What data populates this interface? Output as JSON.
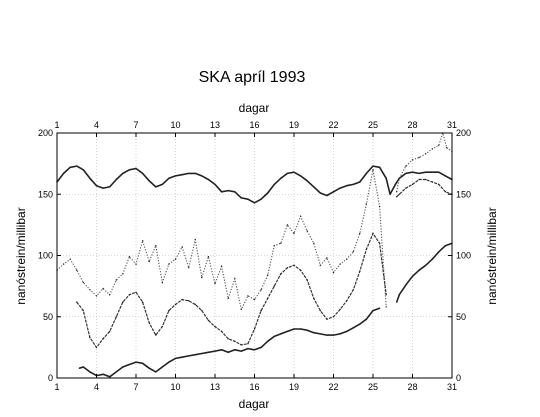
{
  "chart_data": {
    "type": "line",
    "title": "SKA  apríl 1993",
    "xlabel_top": "dagar",
    "xlabel_bottom": "dagar",
    "ylabel_left": "nanóstrein/millibar",
    "ylabel_right": "nanóstrein/millibar",
    "xlim": [
      1,
      31
    ],
    "ylim": [
      0,
      200
    ],
    "x_ticks": [
      1,
      4,
      7,
      10,
      13,
      16,
      19,
      22,
      25,
      28,
      31
    ],
    "y_ticks": [
      0,
      50,
      100,
      150,
      200
    ],
    "grid": true,
    "series": [
      {
        "style": "solid",
        "values": [
          [
            1.0,
            160
          ],
          [
            1.5,
            167
          ],
          [
            2.0,
            172
          ],
          [
            2.5,
            173
          ],
          [
            3.0,
            170
          ],
          [
            3.5,
            163
          ],
          [
            4.0,
            157
          ],
          [
            4.5,
            155
          ],
          [
            5.0,
            156
          ],
          [
            5.5,
            162
          ],
          [
            6.0,
            167
          ],
          [
            6.5,
            170
          ],
          [
            7.0,
            171
          ],
          [
            7.5,
            167
          ],
          [
            8.0,
            161
          ],
          [
            8.5,
            156
          ],
          [
            9.0,
            158
          ],
          [
            9.5,
            163
          ],
          [
            10.0,
            165
          ],
          [
            10.5,
            166
          ],
          [
            11.0,
            167
          ],
          [
            11.5,
            167
          ],
          [
            12.0,
            165
          ],
          [
            12.5,
            162
          ],
          [
            13.0,
            158
          ],
          [
            13.5,
            152
          ],
          [
            14.0,
            153
          ],
          [
            14.5,
            152
          ],
          [
            15.0,
            147
          ],
          [
            15.5,
            146
          ],
          [
            16.0,
            143
          ],
          [
            16.5,
            146
          ],
          [
            17.0,
            151
          ],
          [
            17.5,
            158
          ],
          [
            18.0,
            163
          ],
          [
            18.5,
            167
          ],
          [
            19.0,
            168
          ],
          [
            19.5,
            165
          ],
          [
            20.0,
            161
          ],
          [
            20.5,
            156
          ],
          [
            21.0,
            151
          ],
          [
            21.5,
            149
          ],
          [
            22.0,
            152
          ],
          [
            22.5,
            155
          ],
          [
            23.0,
            157
          ],
          [
            23.5,
            158
          ],
          [
            24.0,
            160
          ],
          [
            24.5,
            167
          ],
          [
            25.0,
            173
          ],
          [
            25.5,
            172
          ],
          [
            26.0,
            163
          ],
          [
            26.3,
            150
          ],
          [
            26.7,
            158
          ],
          [
            27.0,
            163
          ],
          [
            27.5,
            167
          ],
          [
            28.0,
            168
          ],
          [
            28.5,
            167
          ],
          [
            29.0,
            168
          ],
          [
            29.5,
            168
          ],
          [
            30.0,
            168
          ],
          [
            30.5,
            165
          ],
          [
            31.0,
            162
          ]
        ]
      },
      {
        "style": "dotted-oscillating",
        "values": [
          [
            1.0,
            88
          ],
          [
            1.5,
            93
          ],
          [
            2.0,
            97
          ],
          [
            2.5,
            88
          ],
          [
            3.0,
            78
          ],
          [
            3.5,
            72
          ],
          [
            4.0,
            67
          ],
          [
            4.5,
            73
          ],
          [
            5.0,
            68
          ],
          [
            5.5,
            80
          ],
          [
            6.0,
            85
          ],
          [
            6.5,
            99
          ],
          [
            7.0,
            93
          ],
          [
            7.5,
            112
          ],
          [
            8.0,
            95
          ],
          [
            8.5,
            108
          ],
          [
            9.0,
            78
          ],
          [
            9.5,
            93
          ],
          [
            10.0,
            97
          ],
          [
            10.5,
            107
          ],
          [
            11.0,
            90
          ],
          [
            11.5,
            113
          ],
          [
            12.0,
            82
          ],
          [
            12.5,
            99
          ],
          [
            13.0,
            77
          ],
          [
            13.5,
            91
          ],
          [
            14.0,
            65
          ],
          [
            14.5,
            81
          ],
          [
            15.0,
            56
          ],
          [
            15.5,
            67
          ],
          [
            16.0,
            64
          ],
          [
            16.5,
            72
          ],
          [
            17.0,
            84
          ],
          [
            17.5,
            108
          ],
          [
            18.0,
            110
          ],
          [
            18.5,
            125
          ],
          [
            19.0,
            118
          ],
          [
            19.5,
            132
          ],
          [
            20.0,
            120
          ],
          [
            20.5,
            110
          ],
          [
            21.0,
            92
          ],
          [
            21.5,
            98
          ],
          [
            22.0,
            86
          ],
          [
            22.5,
            93
          ],
          [
            23.0,
            97
          ],
          [
            23.5,
            103
          ],
          [
            24.0,
            118
          ],
          [
            24.5,
            142
          ],
          [
            25.0,
            170
          ],
          [
            25.5,
            140
          ],
          [
            26.0,
            58
          ]
        ]
      },
      {
        "style": "dotted-oscillating",
        "values": [
          [
            26.8,
            152
          ],
          [
            27.0,
            163
          ],
          [
            27.5,
            173
          ],
          [
            28.0,
            178
          ],
          [
            28.5,
            180
          ],
          [
            29.0,
            183
          ],
          [
            29.5,
            187
          ],
          [
            30.0,
            190
          ],
          [
            30.3,
            200
          ],
          [
            30.6,
            188
          ],
          [
            31.0,
            185
          ]
        ]
      },
      {
        "style": "solid-dotted",
        "values": [
          [
            2.5,
            62
          ],
          [
            3.0,
            55
          ],
          [
            3.5,
            33
          ],
          [
            4.0,
            25
          ],
          [
            4.5,
            32
          ],
          [
            5.0,
            38
          ],
          [
            5.5,
            50
          ],
          [
            6.0,
            62
          ],
          [
            6.5,
            68
          ],
          [
            7.0,
            70
          ],
          [
            7.5,
            62
          ],
          [
            8.0,
            45
          ],
          [
            8.5,
            35
          ],
          [
            9.0,
            42
          ],
          [
            9.5,
            55
          ],
          [
            10.0,
            60
          ],
          [
            10.5,
            64
          ],
          [
            11.0,
            63
          ],
          [
            11.5,
            60
          ],
          [
            12.0,
            55
          ],
          [
            12.5,
            47
          ],
          [
            13.0,
            42
          ],
          [
            13.5,
            38
          ],
          [
            14.0,
            32
          ],
          [
            14.5,
            30
          ],
          [
            15.0,
            27
          ],
          [
            15.5,
            28
          ],
          [
            16.0,
            40
          ],
          [
            16.5,
            55
          ],
          [
            17.0,
            65
          ],
          [
            17.5,
            75
          ],
          [
            18.0,
            85
          ],
          [
            18.5,
            90
          ],
          [
            19.0,
            92
          ],
          [
            19.5,
            88
          ],
          [
            20.0,
            80
          ],
          [
            20.5,
            65
          ],
          [
            21.0,
            55
          ],
          [
            21.5,
            48
          ],
          [
            22.0,
            50
          ],
          [
            22.5,
            56
          ],
          [
            23.0,
            63
          ],
          [
            23.5,
            72
          ],
          [
            24.0,
            87
          ],
          [
            24.5,
            105
          ],
          [
            25.0,
            118
          ],
          [
            25.5,
            110
          ],
          [
            26.0,
            68
          ]
        ]
      },
      {
        "style": "solid-dotted",
        "values": [
          [
            26.8,
            148
          ],
          [
            27.0,
            150
          ],
          [
            27.5,
            155
          ],
          [
            28.0,
            158
          ],
          [
            28.5,
            162
          ],
          [
            29.0,
            162
          ],
          [
            29.5,
            160
          ],
          [
            30.0,
            158
          ],
          [
            30.5,
            152
          ],
          [
            31.0,
            150
          ]
        ]
      },
      {
        "style": "solid",
        "values": [
          [
            2.7,
            8
          ],
          [
            3.0,
            9
          ],
          [
            3.5,
            5
          ],
          [
            4.0,
            2
          ],
          [
            4.5,
            3
          ],
          [
            5.0,
            1
          ],
          [
            5.5,
            5
          ],
          [
            6.0,
            9
          ],
          [
            6.5,
            11
          ],
          [
            7.0,
            13
          ],
          [
            7.5,
            12
          ],
          [
            8.0,
            8
          ],
          [
            8.5,
            5
          ],
          [
            9.0,
            9
          ],
          [
            9.5,
            13
          ],
          [
            10.0,
            16
          ],
          [
            10.5,
            17
          ],
          [
            11.0,
            18
          ],
          [
            11.5,
            19
          ],
          [
            12.0,
            20
          ],
          [
            12.5,
            21
          ],
          [
            13.0,
            22
          ],
          [
            13.5,
            23
          ],
          [
            14.0,
            21
          ],
          [
            14.5,
            23
          ],
          [
            15.0,
            22
          ],
          [
            15.5,
            24
          ],
          [
            16.0,
            23
          ],
          [
            16.5,
            25
          ],
          [
            17.0,
            30
          ],
          [
            17.5,
            34
          ],
          [
            18.0,
            36
          ],
          [
            18.5,
            38
          ],
          [
            19.0,
            40
          ],
          [
            19.5,
            40
          ],
          [
            20.0,
            39
          ],
          [
            20.5,
            37
          ],
          [
            21.0,
            36
          ],
          [
            21.5,
            35
          ],
          [
            22.0,
            35
          ],
          [
            22.5,
            36
          ],
          [
            23.0,
            38
          ],
          [
            23.5,
            41
          ],
          [
            24.0,
            44
          ],
          [
            24.5,
            48
          ],
          [
            25.0,
            55
          ],
          [
            25.5,
            57
          ]
        ]
      },
      {
        "style": "solid",
        "values": [
          [
            26.8,
            62
          ],
          [
            27.0,
            68
          ],
          [
            27.5,
            76
          ],
          [
            28.0,
            83
          ],
          [
            28.5,
            88
          ],
          [
            29.0,
            92
          ],
          [
            29.5,
            97
          ],
          [
            30.0,
            103
          ],
          [
            30.5,
            108
          ],
          [
            31.0,
            110
          ]
        ]
      }
    ]
  }
}
